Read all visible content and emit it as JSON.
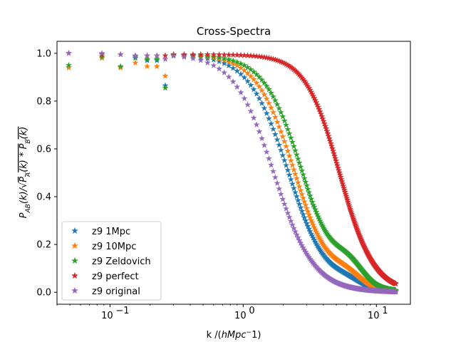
{
  "chart_data": {
    "type": "scatter",
    "title": "Cross-Spectra",
    "xlabel": "k /(hMpc^-1)",
    "ylabel": "P_AB(k)/sqrt(P_A(k)*P_B(k))",
    "xscale": "log",
    "xlim": [
      0.04,
      18
    ],
    "ylim": [
      -0.05,
      1.05
    ],
    "x_ticks": [
      0.1,
      1,
      10
    ],
    "x_tick_labels": [
      "10",
      "10",
      "10"
    ],
    "x_tick_exponents": [
      "−1",
      "0",
      "1"
    ],
    "y_ticks": [
      0.0,
      0.2,
      0.4,
      0.6,
      0.8,
      1.0
    ],
    "y_tick_labels": [
      "0.0",
      "0.2",
      "0.4",
      "0.6",
      "0.8",
      "1.0"
    ],
    "legend_position": "lower-left",
    "marker": "star",
    "series": [
      {
        "name": "z9 1Mpc",
        "color": "#1f77b4",
        "model": {
          "x_half": 2.2,
          "steep": 2.9,
          "osc_amp": 0.025,
          "osc_center": 6.0
        },
        "low_k_points": [
          [
            0.049,
            0.94
          ],
          [
            0.087,
            0.98
          ],
          [
            0.12,
            0.94
          ],
          [
            0.155,
            0.98
          ],
          [
            0.19,
            0.97
          ],
          [
            0.225,
            0.97
          ],
          [
            0.26,
            0.865
          ]
        ]
      },
      {
        "name": "z9 10Mpc",
        "color": "#ff7f0e",
        "model": {
          "x_half": 2.45,
          "steep": 3.0,
          "osc_amp": 0.045,
          "osc_center": 6.0
        },
        "low_k_points": [
          [
            0.049,
            0.94
          ],
          [
            0.087,
            0.98
          ],
          [
            0.12,
            0.94
          ],
          [
            0.155,
            0.96
          ],
          [
            0.19,
            0.945
          ],
          [
            0.225,
            0.945
          ],
          [
            0.26,
            0.905
          ]
        ]
      },
      {
        "name": "z9 Zeldovich",
        "color": "#2ca02c",
        "model": {
          "x_half": 2.8,
          "steep": 3.0,
          "osc_amp": 0.075,
          "osc_center": 6.2
        },
        "low_k_points": [
          [
            0.049,
            0.95
          ],
          [
            0.087,
            0.985
          ],
          [
            0.12,
            0.945
          ],
          [
            0.155,
            0.985
          ],
          [
            0.19,
            0.975
          ],
          [
            0.225,
            0.975
          ],
          [
            0.26,
            0.855
          ]
        ]
      },
      {
        "name": "z9 perfect",
        "color": "#d62728",
        "model": {
          "x_half": 5.3,
          "steep": 3.4,
          "osc_amp": 0.0,
          "osc_center": 10.0
        },
        "low_k_points": [
          [
            0.049,
            1.0
          ],
          [
            0.087,
            0.995
          ],
          [
            0.12,
            0.995
          ],
          [
            0.155,
            0.99
          ],
          [
            0.19,
            0.99
          ],
          [
            0.225,
            0.99
          ],
          [
            0.26,
            0.99
          ]
        ]
      },
      {
        "name": "z9 original",
        "color": "#9467bd",
        "model": {
          "x_half": 1.7,
          "steep": 2.9,
          "osc_amp": 0.0,
          "osc_center": 5.0
        },
        "low_k_points": [
          [
            0.049,
            1.0
          ],
          [
            0.087,
            1.0
          ],
          [
            0.12,
            0.995
          ],
          [
            0.155,
            0.99
          ],
          [
            0.19,
            0.99
          ],
          [
            0.225,
            0.99
          ],
          [
            0.26,
            0.975
          ]
        ]
      }
    ],
    "k_max": 14.0
  }
}
